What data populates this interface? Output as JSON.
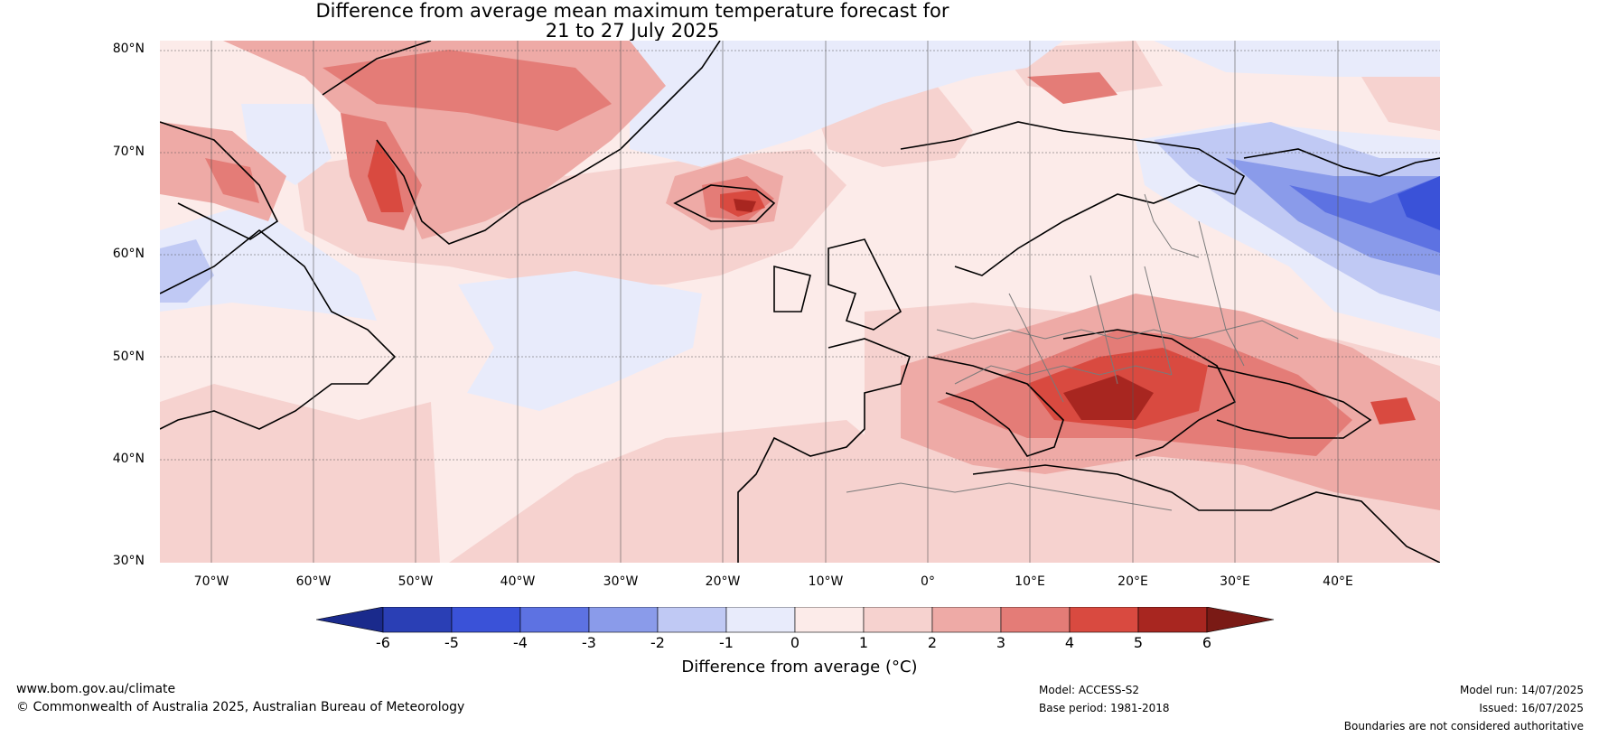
{
  "title": {
    "line1": "Difference from average mean maximum temperature forecast for",
    "line2": "21 to 27 July 2025"
  },
  "axes": {
    "lat_labels": [
      "80°N",
      "70°N",
      "60°N",
      "50°N",
      "40°N",
      "30°N"
    ],
    "lon_labels": [
      "70°W",
      "60°W",
      "50°W",
      "40°W",
      "30°W",
      "20°W",
      "10°W",
      "0°",
      "10°E",
      "20°E",
      "30°E",
      "40°E"
    ],
    "lat_range": [
      30,
      80
    ],
    "lon_range": [
      -75,
      50
    ]
  },
  "colorbar": {
    "label": "Difference from average (°C)",
    "ticks": [
      "-6",
      "-5",
      "-4",
      "-3",
      "-2",
      "-1",
      "0",
      "1",
      "2",
      "3",
      "4",
      "5",
      "6"
    ],
    "colors": [
      "#1a2a8c",
      "#2a3fb5",
      "#3a52d8",
      "#5d72e2",
      "#8a9bea",
      "#c0c9f4",
      "#e8ebfb",
      "#fcebe9",
      "#f6d2cf",
      "#eeaaa6",
      "#e47c77",
      "#d94a40",
      "#a82620",
      "#7a1a15"
    ]
  },
  "footer": {
    "url": "www.bom.gov.au/climate",
    "copyright": "© Commonwealth of Australia 2025, Australian Bureau of Meteorology",
    "model": "Model: ACCESS-S2",
    "base_period": "Base period: 1981-2018",
    "model_run": "Model run: 14/07/2025",
    "issued": "Issued: 16/07/2025",
    "disclaimer": "Boundaries are not considered authoritative"
  },
  "map": {
    "type": "anomaly-field",
    "region": "North Atlantic and Europe",
    "features": [
      {
        "name": "Balkans heat anomaly",
        "lon": 22,
        "lat": 44,
        "value": 5.5
      },
      {
        "name": "Eastern Europe heat anomaly",
        "lon": 28,
        "lat": 48,
        "value": 4
      },
      {
        "name": "Iceland heat anomaly",
        "lon": -18,
        "lat": 65,
        "value": 4.5
      },
      {
        "name": "West Greenland heat anomaly",
        "lon": -50,
        "lat": 66,
        "value": 4
      },
      {
        "name": "Greenland ice sheet warm",
        "lon": -40,
        "lat": 75,
        "value": 3
      },
      {
        "name": "Svalbard warm",
        "lon": 18,
        "lat": 78,
        "value": 3
      },
      {
        "name": "Northwest Russia cool anomaly",
        "lon": 45,
        "lat": 64,
        "value": -3.5
      },
      {
        "name": "Mid-Atlantic cool patch",
        "lon": -32,
        "lat": 50,
        "value": -0.5
      },
      {
        "name": "Norwegian Sea cool",
        "lon": -8,
        "lat": 74,
        "value": -0.5
      }
    ]
  }
}
